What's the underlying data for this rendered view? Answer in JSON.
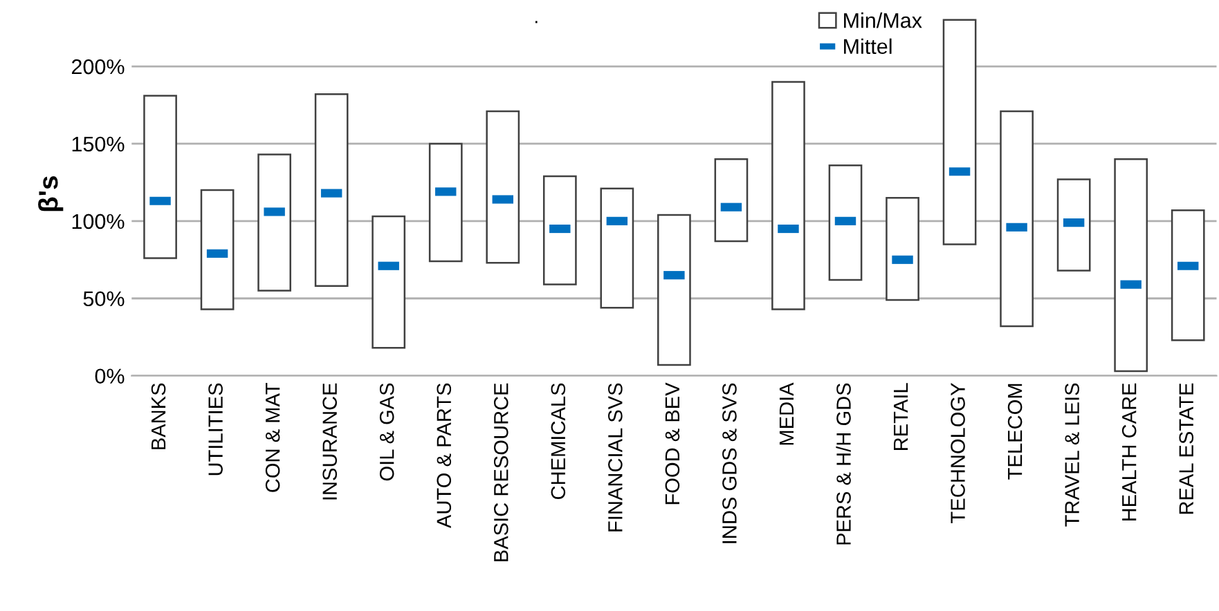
{
  "chart_data": {
    "type": "bar",
    "title": ".",
    "ylabel": "β's",
    "categories": [
      "BANKS",
      "UTILITIES",
      "CON & MAT",
      "INSURANCE",
      "OIL & GAS",
      "AUTO & PARTS",
      "BASIC RESOURCE",
      "CHEMICALS",
      "FINANCIAL SVS",
      "FOOD & BEV",
      "INDS GDS & SVS",
      "MEDIA",
      "PERS & H/H GDS",
      "RETAIL",
      "TECHNOLOGY",
      "TELECOM",
      "TRAVEL & LEIS",
      "HEALTH CARE",
      "REAL ESTATE"
    ],
    "series": [
      {
        "name": "Min/Max",
        "color": "#ffffff",
        "base": [
          76,
          43,
          55,
          58,
          18,
          74,
          73,
          59,
          44,
          7,
          87,
          43,
          62,
          49,
          85,
          32,
          68,
          3,
          23
        ],
        "values": [
          105,
          77,
          88,
          124,
          85,
          76,
          98,
          70,
          77,
          97,
          53,
          147,
          74,
          66,
          145,
          139,
          59,
          137,
          84
        ]
      },
      {
        "name": "Mittel",
        "type": "scatter",
        "color": "#0070c0",
        "values": [
          113,
          79,
          106,
          118,
          71,
          119,
          114,
          95,
          100,
          65,
          109,
          95,
          100,
          75,
          132,
          96,
          99,
          59,
          71
        ]
      }
    ],
    "ylim": [
      0,
      235
    ],
    "yticks": [
      {
        "value": 0,
        "label": "0%"
      },
      {
        "value": 50,
        "label": "50%"
      },
      {
        "value": 100,
        "label": "100%"
      },
      {
        "value": 150,
        "label": "150%"
      },
      {
        "value": 200,
        "label": "200%"
      }
    ],
    "grid": "y",
    "legend": "top"
  }
}
